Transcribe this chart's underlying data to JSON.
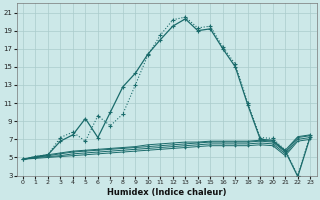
{
  "xlabel": "Humidex (Indice chaleur)",
  "xlim": [
    -0.5,
    23.5
  ],
  "ylim": [
    3,
    22
  ],
  "xticks": [
    0,
    1,
    2,
    3,
    4,
    5,
    6,
    7,
    8,
    9,
    10,
    11,
    12,
    13,
    14,
    15,
    16,
    17,
    18,
    19,
    20,
    21,
    22,
    23
  ],
  "yticks": [
    3,
    5,
    7,
    9,
    11,
    13,
    15,
    17,
    19,
    21
  ],
  "bg_color": "#cce8e8",
  "grid_color": "#aacccc",
  "line_color": "#1a6b6b",
  "curve1_x": [
    0,
    1,
    2,
    3,
    4,
    5,
    6,
    7,
    8,
    9,
    10,
    11,
    12,
    13,
    14,
    15,
    16,
    17,
    18,
    19,
    20,
    21,
    22,
    23
  ],
  "curve1_y": [
    4.8,
    5.1,
    5.3,
    7.2,
    7.8,
    6.8,
    9.6,
    8.5,
    9.8,
    13.0,
    16.3,
    18.5,
    20.2,
    20.5,
    19.3,
    19.5,
    17.2,
    15.3,
    11.0,
    7.2,
    7.1,
    5.8,
    3.0,
    7.5
  ],
  "curve2_x": [
    0,
    1,
    2,
    3,
    4,
    5,
    6,
    7,
    8,
    9,
    10,
    11,
    12,
    13,
    14,
    15,
    16,
    17,
    18,
    19,
    20,
    21,
    22,
    23
  ],
  "curve2_y": [
    4.8,
    5.1,
    5.3,
    6.8,
    7.5,
    9.3,
    7.2,
    10.0,
    12.8,
    14.3,
    16.4,
    18.0,
    19.5,
    20.3,
    19.0,
    19.2,
    17.0,
    15.0,
    10.8,
    7.0,
    6.9,
    5.7,
    2.9,
    7.3
  ],
  "flat1_x": [
    0,
    1,
    2,
    3,
    4,
    5,
    6,
    7,
    8,
    9,
    10,
    11,
    12,
    13,
    14,
    15,
    16,
    17,
    18,
    19,
    20,
    21,
    22,
    23
  ],
  "flat1_y": [
    4.8,
    5.0,
    5.3,
    5.5,
    5.7,
    5.8,
    5.9,
    6.0,
    6.1,
    6.2,
    6.4,
    6.5,
    6.6,
    6.7,
    6.7,
    6.8,
    6.8,
    6.8,
    6.8,
    6.9,
    6.8,
    5.8,
    7.3,
    7.5
  ],
  "flat2_x": [
    0,
    1,
    2,
    3,
    4,
    5,
    6,
    7,
    8,
    9,
    10,
    11,
    12,
    13,
    14,
    15,
    16,
    17,
    18,
    19,
    20,
    21,
    22,
    23
  ],
  "flat2_y": [
    4.8,
    5.0,
    5.2,
    5.4,
    5.6,
    5.7,
    5.8,
    5.9,
    6.0,
    6.1,
    6.2,
    6.3,
    6.4,
    6.5,
    6.6,
    6.7,
    6.7,
    6.7,
    6.7,
    6.8,
    6.7,
    5.6,
    7.2,
    7.4
  ],
  "flat3_x": [
    0,
    1,
    2,
    3,
    4,
    5,
    6,
    7,
    8,
    9,
    10,
    11,
    12,
    13,
    14,
    15,
    16,
    17,
    18,
    19,
    20,
    21,
    22,
    23
  ],
  "flat3_y": [
    4.8,
    5.0,
    5.1,
    5.2,
    5.4,
    5.5,
    5.6,
    5.7,
    5.8,
    5.9,
    6.0,
    6.1,
    6.2,
    6.3,
    6.4,
    6.5,
    6.5,
    6.5,
    6.5,
    6.6,
    6.5,
    5.4,
    7.0,
    7.2
  ],
  "flat4_x": [
    0,
    1,
    2,
    3,
    4,
    5,
    6,
    7,
    8,
    9,
    10,
    11,
    12,
    13,
    14,
    15,
    16,
    17,
    18,
    19,
    20,
    21,
    22,
    23
  ],
  "flat4_y": [
    4.8,
    4.9,
    5.0,
    5.1,
    5.2,
    5.3,
    5.4,
    5.5,
    5.6,
    5.7,
    5.8,
    5.9,
    6.0,
    6.1,
    6.2,
    6.3,
    6.3,
    6.3,
    6.3,
    6.4,
    6.3,
    5.2,
    6.8,
    7.0
  ]
}
